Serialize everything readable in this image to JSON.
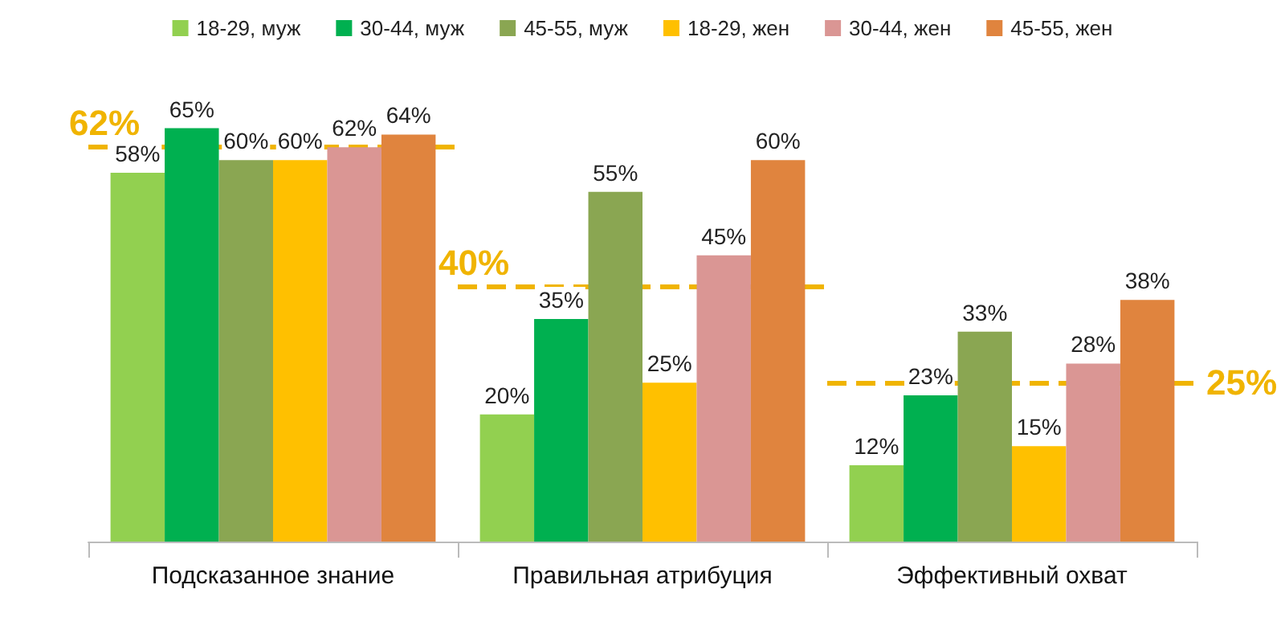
{
  "chart_data": {
    "type": "bar",
    "categories": [
      "Подсказанное знание",
      "Правильная атрибуция",
      "Эффективный охват"
    ],
    "series": [
      {
        "name": "18-29, муж",
        "color": "#92d050",
        "values": [
          58,
          20,
          12
        ],
        "value_labels": [
          "58%",
          "20%",
          "12%"
        ]
      },
      {
        "name": "30-44, муж",
        "color": "#00b050",
        "values": [
          65,
          35,
          23
        ],
        "value_labels": [
          "65%",
          "35%",
          "23%"
        ]
      },
      {
        "name": "45-55, муж",
        "color": "#8aa652",
        "values": [
          60,
          55,
          33
        ],
        "value_labels": [
          "60%",
          "55%",
          "33%"
        ]
      },
      {
        "name": "18-29, жен",
        "color": "#ffc000",
        "values": [
          60,
          25,
          15
        ],
        "value_labels": [
          "60%",
          "25%",
          "15%"
        ]
      },
      {
        "name": "30-44, жен",
        "color": "#da9694",
        "values": [
          62,
          45,
          28
        ],
        "value_labels": [
          "62%",
          "45%",
          "28%"
        ]
      },
      {
        "name": "45-55, жен",
        "color": "#e0843e",
        "values": [
          64,
          60,
          38
        ],
        "value_labels": [
          "64%",
          "60%",
          "38%"
        ]
      }
    ],
    "ref_lines": [
      {
        "axis": "y",
        "value": 62,
        "label": "62%",
        "color": "#f0b400",
        "line_style": "dashed"
      },
      {
        "axis": "y",
        "value": 40,
        "label": "40%",
        "color": "#f0b400",
        "line_style": "dashed"
      },
      {
        "axis": "y",
        "value": 25,
        "label": "25%",
        "color": "#f0b400",
        "line_style": "dashed"
      }
    ],
    "legend": "top",
    "grid": false,
    "tick_labels": "x"
  }
}
